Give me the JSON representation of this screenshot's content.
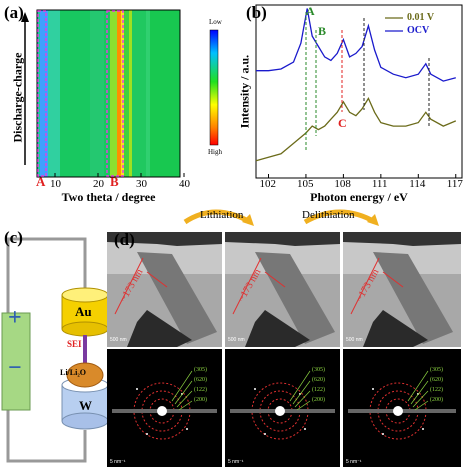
{
  "panels": {
    "a": {
      "label": "(a)",
      "ylabel": "Discharge-charge",
      "xlabel": "Two theta / degree",
      "xticks": [
        "10",
        "20",
        "30",
        "40"
      ],
      "colorbar": {
        "high": "High",
        "low": "Low"
      },
      "regions": [
        "A",
        "B"
      ]
    },
    "b": {
      "label": "(b)",
      "ylabel": "Intensity / a.u.",
      "xlabel": "Photon energy / eV",
      "xticks": [
        "102",
        "105",
        "108",
        "111",
        "114",
        "117"
      ],
      "peaks": [
        "A",
        "B",
        "C"
      ],
      "legend": [
        {
          "name": "0.01 V",
          "color": "#6b6b1a"
        },
        {
          "name": "OCV",
          "color": "#1a1acc"
        }
      ]
    },
    "c": {
      "label": "(c)",
      "plus": "+",
      "minus": "−",
      "au": "Au",
      "sei": "SEI",
      "li": "Li/Li₂O",
      "w": "W"
    },
    "d": {
      "label": "(d)",
      "lithiation": "Lithiation",
      "delithiation": "Delithiation",
      "measure": [
        "~173 nm",
        "~173 nm",
        "~173 nm"
      ],
      "tem_scale": "500 nm",
      "saed_scale": "5 nm⁻¹",
      "planes": [
        "(305)",
        "(620)",
        "(122)",
        "(200)"
      ]
    }
  },
  "chart_data": {
    "type": "line",
    "xlabel": "Photon energy / eV",
    "ylabel": "Intensity / a.u.",
    "xlim": [
      101,
      117.5
    ],
    "series": [
      {
        "name": "OCV",
        "x": [
          101,
          102,
          103,
          104,
          104.6,
          105.1,
          105.5,
          106,
          106.5,
          107,
          107.5,
          108,
          108.5,
          109,
          109.5,
          110,
          110.5,
          111,
          112,
          113,
          114,
          114.6,
          115,
          116,
          117
        ],
        "y": [
          0.62,
          0.62,
          0.63,
          0.67,
          0.78,
          0.98,
          0.82,
          0.76,
          0.7,
          0.68,
          0.72,
          0.8,
          0.7,
          0.72,
          0.76,
          0.88,
          0.74,
          0.64,
          0.6,
          0.58,
          0.6,
          0.66,
          0.6,
          0.56,
          0.58
        ]
      },
      {
        "name": "0.01 V",
        "x": [
          101,
          102,
          103,
          104,
          105,
          105.5,
          106,
          106.5,
          107,
          107.5,
          108,
          108.5,
          109,
          109.5,
          110,
          110.5,
          111,
          112,
          113,
          114,
          114.6,
          115,
          116,
          117
        ],
        "y": [
          0.1,
          0.12,
          0.14,
          0.2,
          0.26,
          0.3,
          0.28,
          0.3,
          0.34,
          0.38,
          0.44,
          0.38,
          0.36,
          0.4,
          0.46,
          0.38,
          0.32,
          0.3,
          0.3,
          0.32,
          0.38,
          0.34,
          0.3,
          0.33
        ]
      }
    ]
  }
}
